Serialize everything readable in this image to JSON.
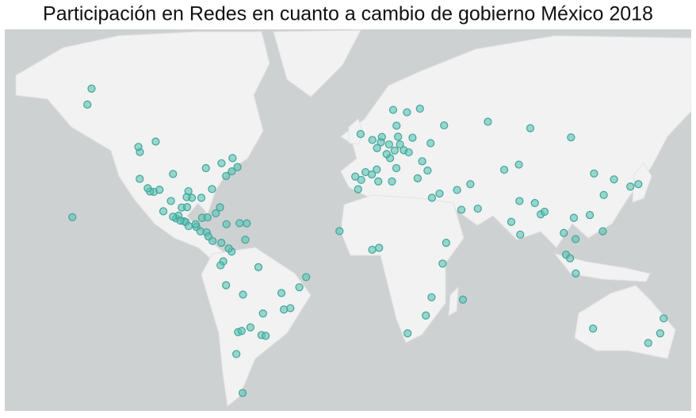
{
  "title": "Participación en Redes en cuanto a cambio de gobierno México 2018",
  "points": [
    {
      "lon": -99.1,
      "lat": 19.4
    },
    {
      "lon": -103.3,
      "lat": 20.7
    },
    {
      "lon": -100.3,
      "lat": 25.7
    },
    {
      "lon": -106,
      "lat": 28.6
    },
    {
      "lon": -98.2,
      "lat": 19
    },
    {
      "lon": -96.7,
      "lat": 17.1
    },
    {
      "lon": -89.6,
      "lat": 21
    },
    {
      "lon": -86.8,
      "lat": 21.2
    },
    {
      "lon": -110,
      "lat": 24
    },
    {
      "lon": -115,
      "lat": 32.5
    },
    {
      "lon": -117,
      "lat": 32.7
    },
    {
      "lon": -92.6,
      "lat": 16.7
    },
    {
      "lon": -93,
      "lat": 18
    },
    {
      "lon": -102,
      "lat": 22
    },
    {
      "lon": -104.9,
      "lat": 21.5
    },
    {
      "lon": -97.5,
      "lat": 25.9
    },
    {
      "lon": -101,
      "lat": 19.7
    },
    {
      "lon": -95,
      "lat": 30
    },
    {
      "lon": -97.7,
      "lat": 30.3
    },
    {
      "lon": -96.8,
      "lat": 32.8
    },
    {
      "lon": -118.2,
      "lat": 34
    },
    {
      "lon": -122.4,
      "lat": 37.8
    },
    {
      "lon": -122.3,
      "lat": 47.6
    },
    {
      "lon": -112,
      "lat": 33.4
    },
    {
      "lon": -104.9,
      "lat": 39.7
    },
    {
      "lon": -87.6,
      "lat": 41.9
    },
    {
      "lon": -74,
      "lat": 40.7
    },
    {
      "lon": -77,
      "lat": 38.9
    },
    {
      "lon": -71,
      "lat": 42.3
    },
    {
      "lon": -80.2,
      "lat": 25.8
    },
    {
      "lon": -84.4,
      "lat": 33.7
    },
    {
      "lon": -90,
      "lat": 30
    },
    {
      "lon": -79.4,
      "lat": 43.7
    },
    {
      "lon": -73.6,
      "lat": 45.5
    },
    {
      "lon": -123.1,
      "lat": 49.3
    },
    {
      "lon": -114,
      "lat": 51
    },
    {
      "lon": -149.9,
      "lat": 61.2
    },
    {
      "lon": -147.7,
      "lat": 64.8
    },
    {
      "lon": -157.8,
      "lat": 21.3
    },
    {
      "lon": -90.5,
      "lat": 14.6
    },
    {
      "lon": -87.2,
      "lat": 14.1
    },
    {
      "lon": -86.3,
      "lat": 12.1
    },
    {
      "lon": -84.1,
      "lat": 9.9
    },
    {
      "lon": -79.5,
      "lat": 9
    },
    {
      "lon": -82.4,
      "lat": 23.1
    },
    {
      "lon": -69.9,
      "lat": 18.5
    },
    {
      "lon": -66.1,
      "lat": 18.4
    },
    {
      "lon": -76.8,
      "lat": 18
    },
    {
      "lon": -74.1,
      "lat": 4.7
    },
    {
      "lon": -75.6,
      "lat": 6.2
    },
    {
      "lon": -66.9,
      "lat": 10.5
    },
    {
      "lon": -78.5,
      "lat": -0.2
    },
    {
      "lon": -79.9,
      "lat": -2.2
    },
    {
      "lon": -77,
      "lat": -12
    },
    {
      "lon": -68.1,
      "lat": -16.5
    },
    {
      "lon": -70.7,
      "lat": -33.4
    },
    {
      "lon": -58.4,
      "lat": -34.6
    },
    {
      "lon": -56.2,
      "lat": -34.9
    },
    {
      "lon": -57.6,
      "lat": -25.3
    },
    {
      "lon": -46.6,
      "lat": -23.5
    },
    {
      "lon": -43.2,
      "lat": -22.9
    },
    {
      "lon": -47.9,
      "lat": -15.8
    },
    {
      "lon": -38.5,
      "lat": -13
    },
    {
      "lon": -34.9,
      "lat": -8
    },
    {
      "lon": -60,
      "lat": -3.1
    },
    {
      "lon": -64.2,
      "lat": -31.4
    },
    {
      "lon": -68.8,
      "lat": -32.9
    },
    {
      "lon": -71.6,
      "lat": -42
    },
    {
      "lon": -68.3,
      "lat": -54.8
    },
    {
      "lon": -3.7,
      "lat": 40.4
    },
    {
      "lon": 2.2,
      "lat": 41.4
    },
    {
      "lon": -0.4,
      "lat": 39.5
    },
    {
      "lon": -5.98,
      "lat": 37.4
    },
    {
      "lon": -9.1,
      "lat": 38.7
    },
    {
      "lon": 2.35,
      "lat": 48.9
    },
    {
      "lon": -0.1,
      "lat": 51.5
    },
    {
      "lon": -6.3,
      "lat": 53.3
    },
    {
      "lon": 4.9,
      "lat": 52.4
    },
    {
      "lon": 4.4,
      "lat": 50.8
    },
    {
      "lon": 13.4,
      "lat": 52.5
    },
    {
      "lon": 11.6,
      "lat": 48.1
    },
    {
      "lon": 8.7,
      "lat": 50.1
    },
    {
      "lon": 12.5,
      "lat": 41.9
    },
    {
      "lon": 9.2,
      "lat": 45.5
    },
    {
      "lon": 16.4,
      "lat": 48.2
    },
    {
      "lon": 14.4,
      "lat": 50.1
    },
    {
      "lon": 21,
      "lat": 52.2
    },
    {
      "lon": 18.1,
      "lat": 59.3
    },
    {
      "lon": 10.8,
      "lat": 59.9
    },
    {
      "lon": 12.6,
      "lat": 55.7
    },
    {
      "lon": 24.9,
      "lat": 60.2
    },
    {
      "lon": 37.6,
      "lat": 55.8
    },
    {
      "lon": 30.5,
      "lat": 50.5
    },
    {
      "lon": 28.9,
      "lat": 41
    },
    {
      "lon": 23.7,
      "lat": 38
    },
    {
      "lon": 19,
      "lat": 47.5
    },
    {
      "lon": 26.1,
      "lat": 44.4
    },
    {
      "lon": 7.4,
      "lat": 46.9
    },
    {
      "lon": -7.6,
      "lat": 33.6
    },
    {
      "lon": 3,
      "lat": 36.8
    },
    {
      "lon": 10.2,
      "lat": 36.8
    },
    {
      "lon": 31.2,
      "lat": 30
    },
    {
      "lon": -17.4,
      "lat": 14.7
    },
    {
      "lon": -0.2,
      "lat": 5.6
    },
    {
      "lon": 3.4,
      "lat": 6.5
    },
    {
      "lon": 36.8,
      "lat": -1.3
    },
    {
      "lon": 38.7,
      "lat": 9
    },
    {
      "lon": 28,
      "lat": -26.2
    },
    {
      "lon": 18.4,
      "lat": -33.9
    },
    {
      "lon": 31,
      "lat": -17.8
    },
    {
      "lon": 47.5,
      "lat": -18.9
    },
    {
      "lon": 35.2,
      "lat": 31.8
    },
    {
      "lon": 44.4,
      "lat": 33.3
    },
    {
      "lon": 51.4,
      "lat": 35.7
    },
    {
      "lon": 55.3,
      "lat": 25.2
    },
    {
      "lon": 46.7,
      "lat": 24.7
    },
    {
      "lon": 72.9,
      "lat": 19.1
    },
    {
      "lon": 77.2,
      "lat": 28.6
    },
    {
      "lon": 77.6,
      "lat": 13
    },
    {
      "lon": 88.4,
      "lat": 22.6
    },
    {
      "lon": 85.3,
      "lat": 27.7
    },
    {
      "lon": 90.4,
      "lat": 23.8
    },
    {
      "lon": 100.5,
      "lat": 13.8
    },
    {
      "lon": 106.7,
      "lat": 10.8
    },
    {
      "lon": 105.8,
      "lat": 21
    },
    {
      "lon": 101.7,
      "lat": 3.1
    },
    {
      "lon": 103.8,
      "lat": 1.35
    },
    {
      "lon": 106.8,
      "lat": -6.2
    },
    {
      "lon": 121,
      "lat": 14.6
    },
    {
      "lon": 116.4,
      "lat": 39.9
    },
    {
      "lon": 121.5,
      "lat": 31.2
    },
    {
      "lon": 114.2,
      "lat": 22.3
    },
    {
      "lon": 126.9,
      "lat": 37.6
    },
    {
      "lon": 139.7,
      "lat": 35.7
    },
    {
      "lon": 135.5,
      "lat": 34.7
    },
    {
      "lon": 69.2,
      "lat": 41.3
    },
    {
      "lon": 76.9,
      "lat": 43.2
    },
    {
      "lon": 82.9,
      "lat": 55
    },
    {
      "lon": 60.6,
      "lat": 56.8
    },
    {
      "lon": 104.3,
      "lat": 52.3
    },
    {
      "lon": 153,
      "lat": -27.5
    },
    {
      "lon": 151.2,
      "lat": -33.9
    },
    {
      "lon": 144.9,
      "lat": -37.8
    },
    {
      "lon": 115.9,
      "lat": -31.9
    }
  ]
}
